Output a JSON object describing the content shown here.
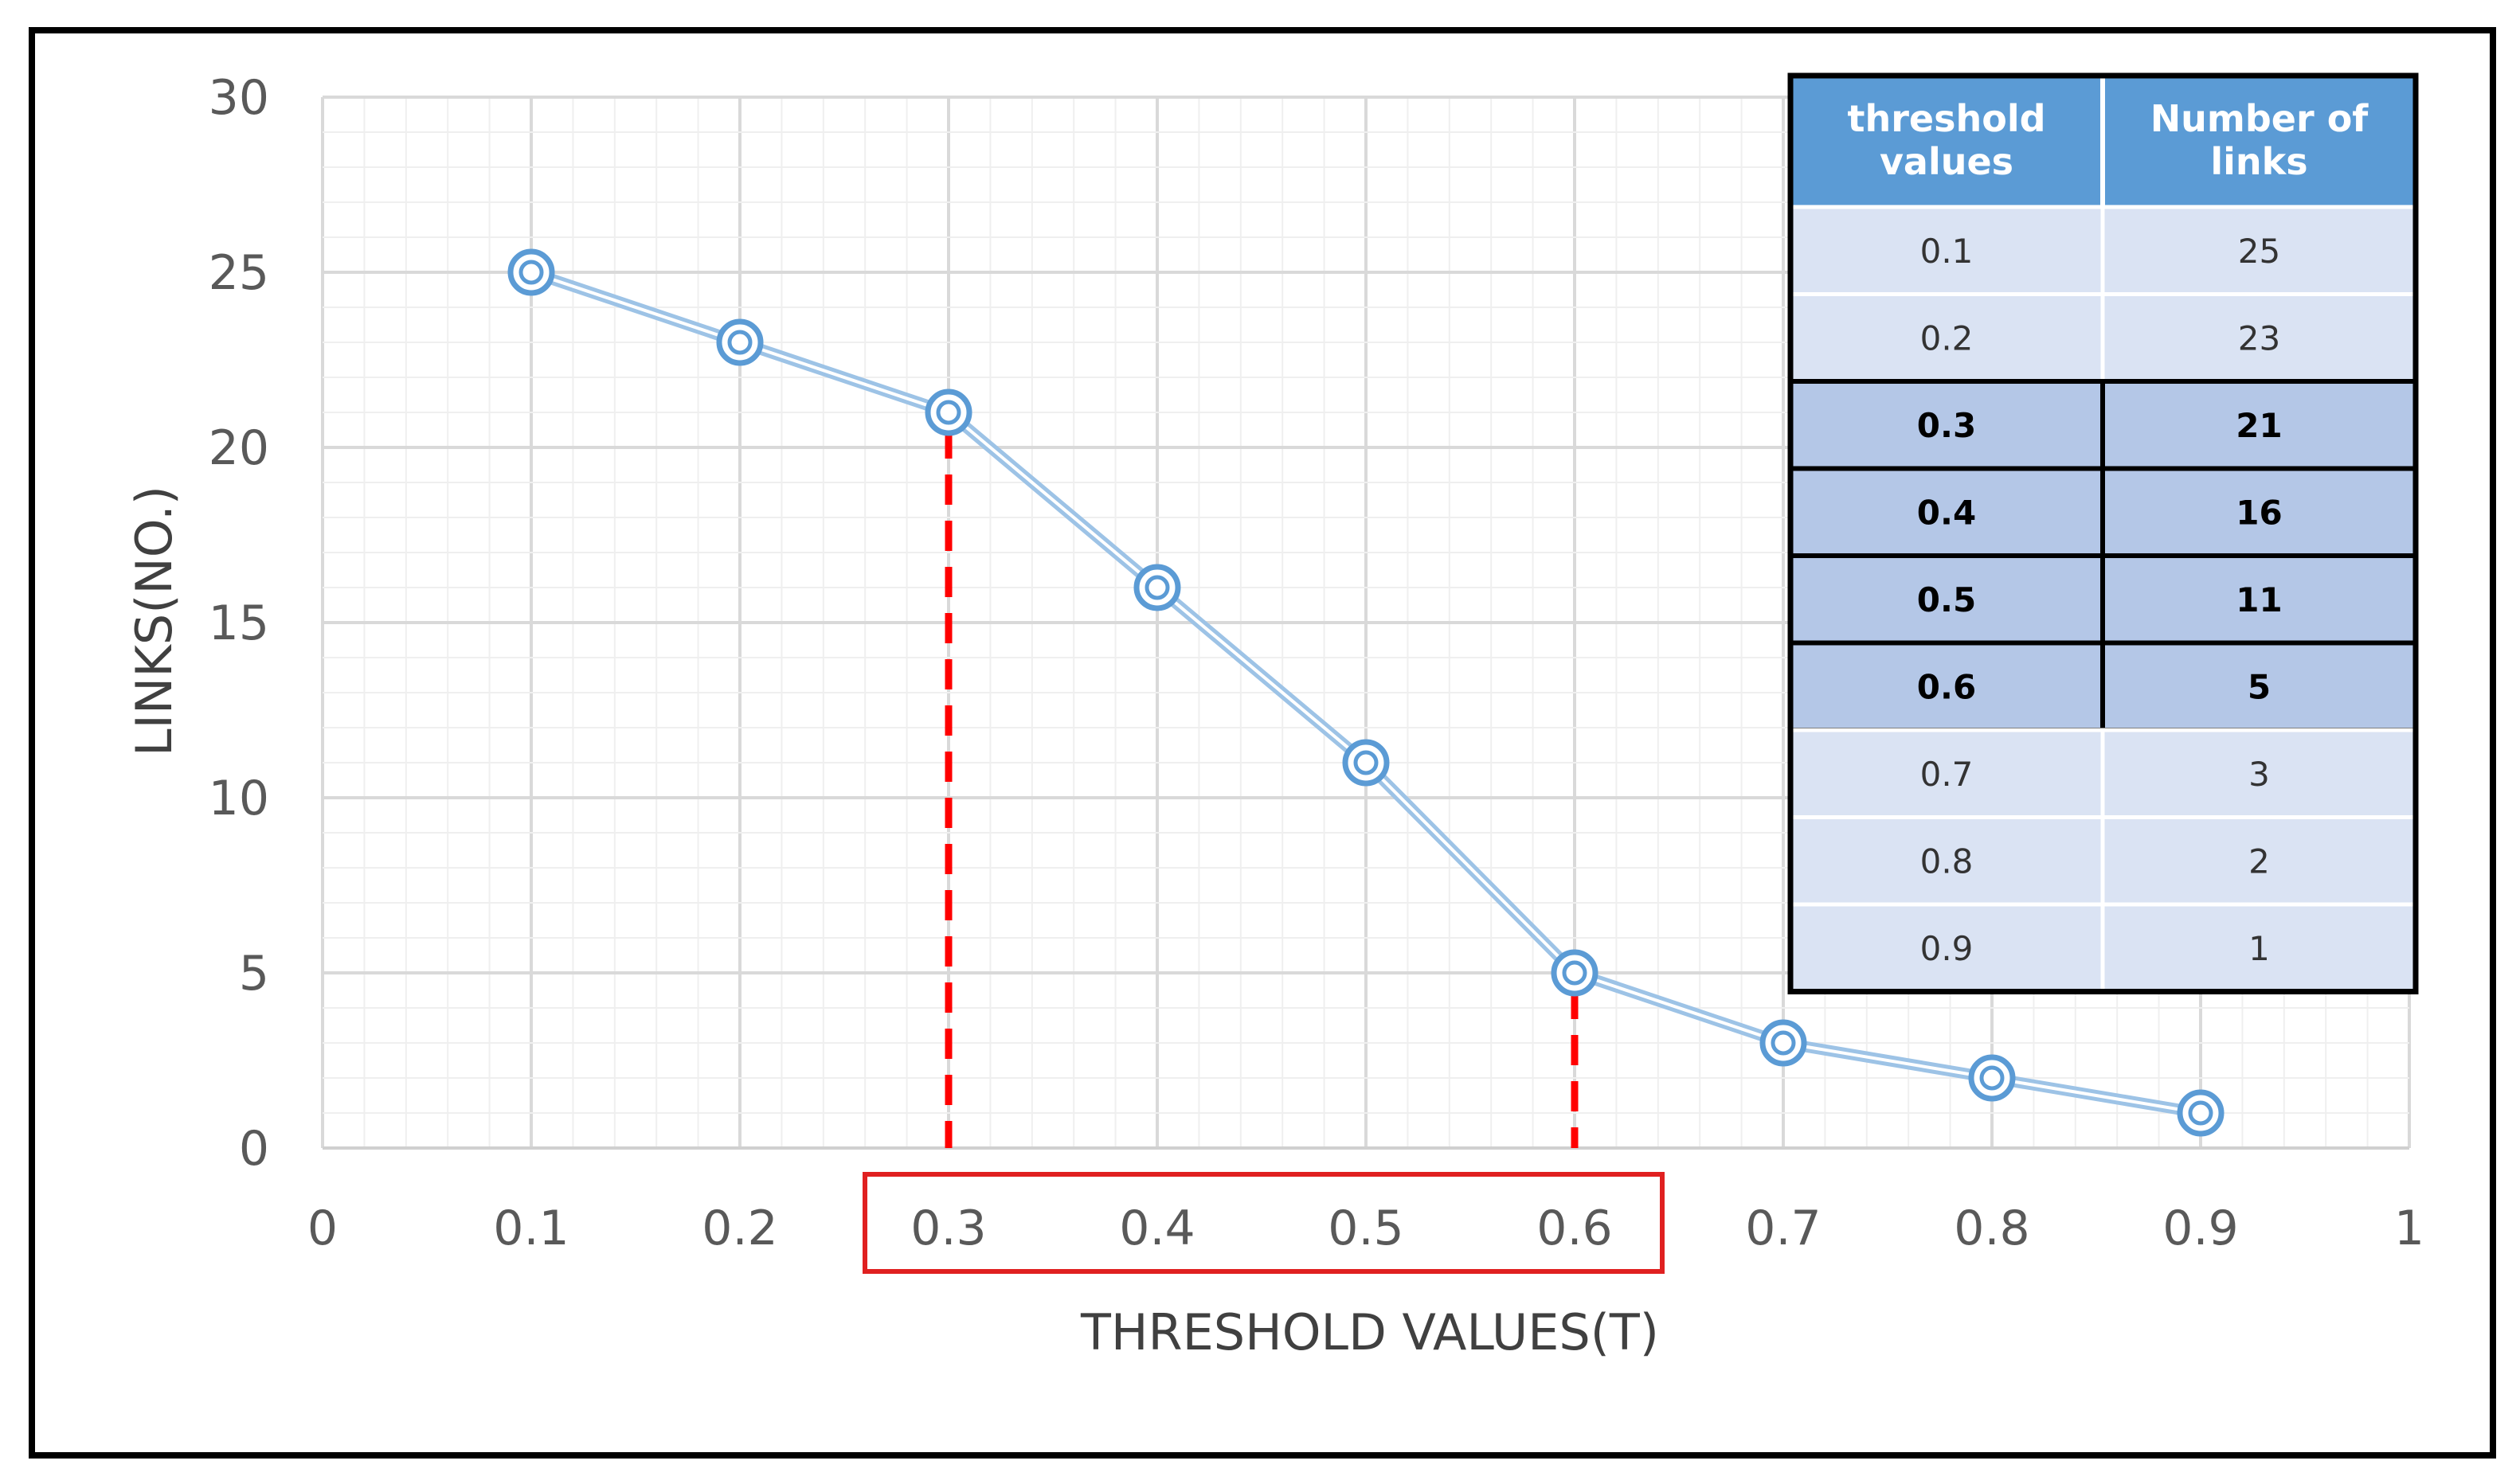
{
  "chart_data": {
    "type": "line",
    "xlabel": "THRESHOLD VALUES(T)",
    "ylabel": "LINKS(NO.)",
    "xlim": [
      0,
      1
    ],
    "ylim": [
      0,
      30
    ],
    "x_ticks": [
      "0",
      "0.1",
      "0.2",
      "0.3",
      "0.4",
      "0.5",
      "0.6",
      "0.7",
      "0.8",
      "0.9",
      "1"
    ],
    "y_ticks": [
      "0",
      "5",
      "10",
      "15",
      "20",
      "25",
      "30"
    ],
    "grid": true,
    "series": [
      {
        "x": [
          0.1,
          0.2,
          0.3,
          0.4,
          0.5,
          0.6,
          0.7,
          0.8,
          0.9
        ],
        "values": [
          25,
          23,
          21,
          16,
          11,
          5,
          3,
          2,
          1
        ]
      }
    ],
    "annotations": {
      "dashed_markers_at_x": [
        0.3,
        0.6
      ],
      "highlight_range_x": [
        0.3,
        0.6
      ]
    },
    "table": {
      "headers": [
        "threshold values",
        "Number of links"
      ],
      "rows": [
        [
          "0.1",
          "25"
        ],
        [
          "0.2",
          "23"
        ],
        [
          "0.3",
          "21"
        ],
        [
          "0.4",
          "16"
        ],
        [
          "0.5",
          "11"
        ],
        [
          "0.6",
          "5"
        ],
        [
          "0.7",
          "3"
        ],
        [
          "0.8",
          "2"
        ],
        [
          "0.9",
          "1"
        ]
      ],
      "highlighted_rows": [
        2,
        3,
        4,
        5
      ]
    },
    "colors": {
      "line": "#9dc3e6",
      "marker": "#5b9bd5",
      "dashed": "#ff0000",
      "highlight_box": "#e02020",
      "table_header": "#5b9bd5",
      "table_row": "#dae3f3",
      "table_row_highlight": "#b4c7e7",
      "frame": "#000000"
    }
  }
}
